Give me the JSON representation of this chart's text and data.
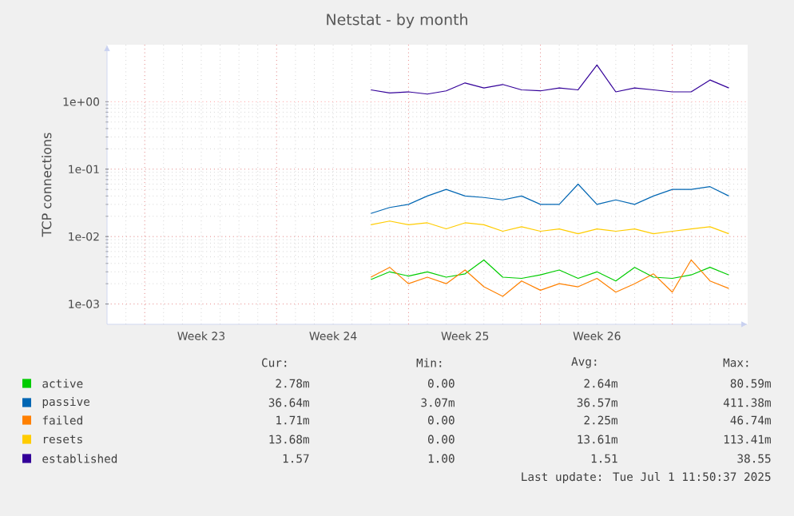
{
  "chart_data": {
    "type": "line",
    "title": "Netstat - by month",
    "ylabel": "TCP connections",
    "log": "y",
    "grid": true,
    "legend": "bottom",
    "xlim": [
      "2025-05-29",
      "2025-07-02"
    ],
    "xticks": [
      {
        "value": "2025-05-31",
        "label": null
      },
      {
        "value": "2025-06-03",
        "label": "Week 23"
      },
      {
        "value": "2025-06-07",
        "label": null
      },
      {
        "value": "2025-06-10",
        "label": "Week 24"
      },
      {
        "value": "2025-06-14",
        "label": null
      },
      {
        "value": "2025-06-17",
        "label": "Week 25"
      },
      {
        "value": "2025-06-21",
        "label": null
      },
      {
        "value": "2025-06-24",
        "label": "Week 26"
      },
      {
        "value": "2025-06-28",
        "label": null
      }
    ],
    "ylim": [
      0.0005,
      7
    ],
    "yticks": [
      {
        "value": 0.001,
        "label": "1e-03"
      },
      {
        "value": 0.01,
        "label": "1e-02"
      },
      {
        "value": 0.1,
        "label": "1e-01"
      },
      {
        "value": 1,
        "label": "1e+00"
      }
    ],
    "x": [
      "2025-06-12",
      "2025-06-13",
      "2025-06-14",
      "2025-06-15",
      "2025-06-16",
      "2025-06-17",
      "2025-06-18",
      "2025-06-19",
      "2025-06-20",
      "2025-06-21",
      "2025-06-22",
      "2025-06-23",
      "2025-06-24",
      "2025-06-25",
      "2025-06-26",
      "2025-06-27",
      "2025-06-28",
      "2025-06-29",
      "2025-06-30",
      "2025-07-01"
    ],
    "series": [
      {
        "name": "active",
        "color": "#00cc00",
        "values": [
          0.0023,
          0.003,
          0.0026,
          0.003,
          0.0025,
          0.0028,
          0.0045,
          0.0025,
          0.0024,
          0.0027,
          0.0032,
          0.0024,
          0.003,
          0.0022,
          0.0035,
          0.0025,
          0.0024,
          0.0027,
          0.0035,
          0.0027
        ]
      },
      {
        "name": "passive",
        "color": "#0066b3",
        "values": [
          0.022,
          0.027,
          0.03,
          0.04,
          0.05,
          0.04,
          0.038,
          0.035,
          0.04,
          0.03,
          0.03,
          0.06,
          0.03,
          0.035,
          0.03,
          0.04,
          0.05,
          0.05,
          0.055,
          0.04
        ]
      },
      {
        "name": "failed",
        "color": "#ff8000",
        "values": [
          0.0025,
          0.0035,
          0.002,
          0.0025,
          0.002,
          0.0032,
          0.0018,
          0.0013,
          0.0022,
          0.0016,
          0.002,
          0.0018,
          0.0024,
          0.0015,
          0.002,
          0.0028,
          0.0015,
          0.0045,
          0.0022,
          0.0017
        ]
      },
      {
        "name": "resets",
        "color": "#ffcc00",
        "values": [
          0.015,
          0.017,
          0.015,
          0.016,
          0.013,
          0.016,
          0.015,
          0.012,
          0.014,
          0.012,
          0.013,
          0.011,
          0.013,
          0.012,
          0.013,
          0.011,
          0.012,
          0.013,
          0.014,
          0.011
        ]
      },
      {
        "name": "established",
        "color": "#330099",
        "values": [
          1.5,
          1.35,
          1.4,
          1.3,
          1.45,
          1.9,
          1.6,
          1.8,
          1.5,
          1.45,
          1.6,
          1.5,
          3.5,
          1.4,
          1.6,
          1.5,
          1.4,
          1.4,
          2.1,
          1.6
        ]
      }
    ],
    "annotations": [
      "Cur:",
      "Min:",
      "Avg:",
      "Max:",
      "2.78m",
      "0.00",
      "2.64m",
      "80.59m",
      "36.64m",
      "3.07m",
      "36.57m",
      "411.38m",
      "1.71m",
      "0.00",
      "2.25m",
      "46.74m",
      "13.68m",
      "0.00",
      "13.61m",
      "113.41m",
      "1.57",
      "1.00",
      "1.51",
      "38.55",
      "Last update: Tue Jul  1 11:50:37 2025"
    ]
  }
}
